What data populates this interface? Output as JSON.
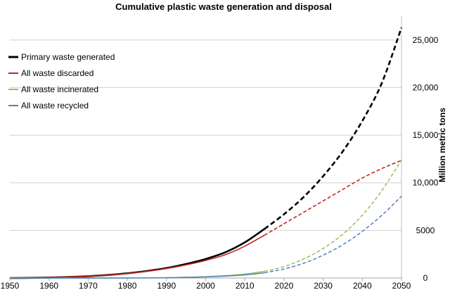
{
  "chart_data": {
    "type": "line",
    "title": "Cumulative plastic waste generation and disposal",
    "xlabel": "",
    "ylabel": "Million metric tons",
    "xlim": [
      1950,
      2050
    ],
    "ylim": [
      0,
      27500
    ],
    "x_ticks": [
      1950,
      1960,
      1970,
      1980,
      1990,
      2000,
      2010,
      2020,
      2030,
      2040,
      2050
    ],
    "x_tick_labels": [
      "1950",
      "1960",
      "1970",
      "1980",
      "1990",
      "2000",
      "2010",
      "2020",
      "2030",
      "2040",
      "2050"
    ],
    "y_ticks": [
      0,
      5000,
      10000,
      15000,
      20000,
      25000
    ],
    "y_tick_labels": [
      "0",
      "5000",
      "10,000",
      "15,000",
      "20,000",
      "25,000"
    ],
    "y_axis_side": "right",
    "grid": true,
    "legend_position": "top-left",
    "x": [
      1950,
      1955,
      1960,
      1965,
      1970,
      1975,
      1980,
      1985,
      1990,
      1995,
      2000,
      2005,
      2010,
      2015,
      2020,
      2025,
      2030,
      2035,
      2040,
      2045,
      2050
    ],
    "projection_start": 2015,
    "series": [
      {
        "name": "Primary waste generated",
        "color": "#000000",
        "values": [
          0,
          15,
          50,
          110,
          190,
          320,
          500,
          740,
          1050,
          1480,
          2000,
          2700,
          3750,
          5150,
          6700,
          8500,
          10700,
          13300,
          16500,
          20500,
          26300
        ]
      },
      {
        "name": "All waste discarded",
        "color": "#c0261f",
        "values": [
          0,
          15,
          50,
          110,
          190,
          310,
          480,
          710,
          1000,
          1380,
          1850,
          2450,
          3350,
          4500,
          5700,
          6900,
          8100,
          9300,
          10500,
          11500,
          12350
        ]
      },
      {
        "name": "All waste incinerated",
        "color": "#9bbb59",
        "values": [
          0,
          0,
          0,
          0,
          0,
          5,
          10,
          20,
          40,
          80,
          140,
          250,
          420,
          700,
          1200,
          2000,
          3100,
          4600,
          6600,
          9200,
          12400
        ]
      },
      {
        "name": "All waste recycled",
        "color": "#4f81bd",
        "values": [
          0,
          0,
          0,
          0,
          0,
          0,
          5,
          10,
          30,
          70,
          120,
          200,
          330,
          550,
          950,
          1550,
          2400,
          3500,
          4900,
          6600,
          8600
        ]
      }
    ]
  }
}
